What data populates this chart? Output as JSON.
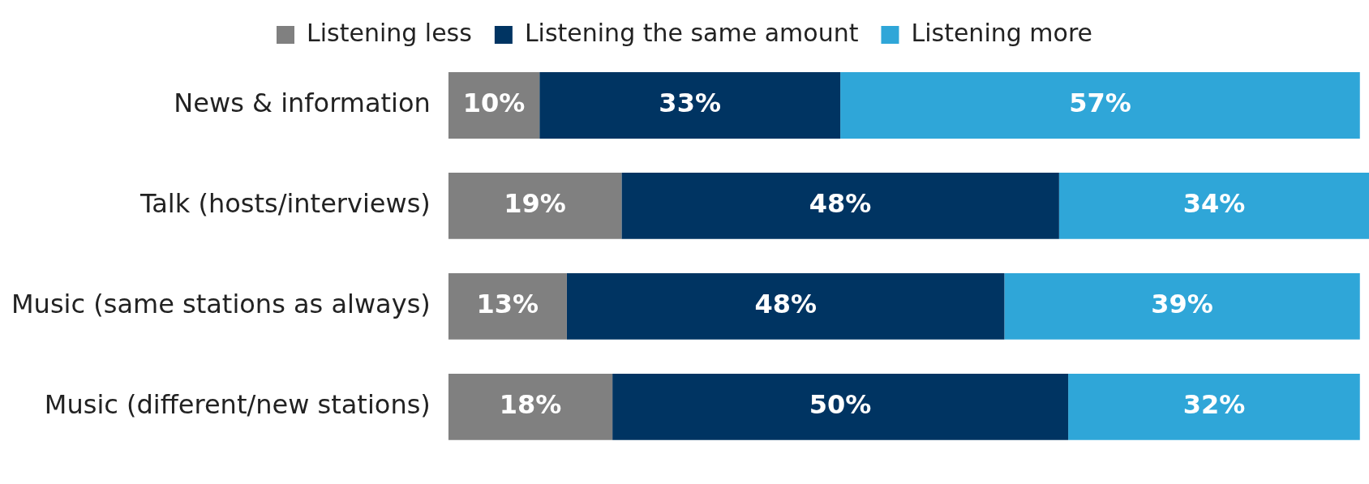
{
  "chart_data": {
    "type": "bar",
    "orientation": "horizontal",
    "stacked": true,
    "legend": "top",
    "categories": [
      "News & information",
      "Talk (hosts/interviews)",
      "Music (same stations as always)",
      "Music (different/new stations)"
    ],
    "series": [
      {
        "name": "Listening less",
        "color": "#808080",
        "values": [
          10,
          19,
          13,
          18
        ],
        "value_labels": [
          "10%",
          "19%",
          "13%",
          "18%"
        ]
      },
      {
        "name": "Listening the same amount",
        "color": "#003462",
        "values": [
          33,
          48,
          48,
          50
        ],
        "value_labels": [
          "33%",
          "48%",
          "48%",
          "50%"
        ]
      },
      {
        "name": "Listening more",
        "color": "#2fa6d8",
        "values": [
          57,
          34,
          39,
          32
        ],
        "value_labels": [
          "57%",
          "34%",
          "39%",
          "32%"
        ]
      }
    ]
  }
}
